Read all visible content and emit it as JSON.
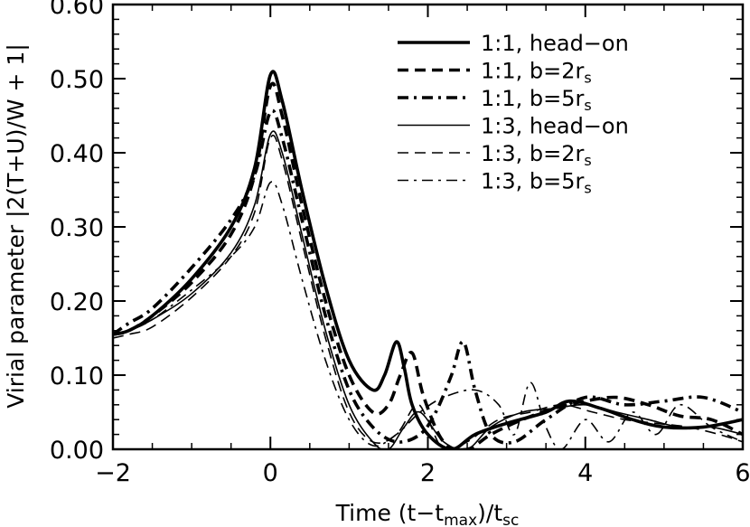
{
  "chart_data": {
    "type": "line",
    "title": "",
    "xlabel": "Time  (t−t",
    "xlabel_sub1": "max",
    "xlabel_mid": ")/t",
    "xlabel_sub2": "sc",
    "ylabel": "Virial parameter  |2(T+U)/W + 1|",
    "xlim": [
      -2,
      6
    ],
    "ylim": [
      0,
      0.6
    ],
    "xticks": [
      -2,
      0,
      2,
      4,
      6
    ],
    "xtick_labels": [
      "−2",
      "0",
      "2",
      "4",
      "6"
    ],
    "yticks": [
      0,
      0.1,
      0.2,
      0.3,
      0.4,
      0.5,
      0.6
    ],
    "ytick_labels": [
      "0.00",
      "0.10",
      "0.20",
      "0.30",
      "0.40",
      "0.50",
      "0.60"
    ],
    "grid": false,
    "legend_position": "top-right",
    "series": [
      {
        "name": "1:1,  head−on",
        "style": "thick-solid",
        "x": [
          -2,
          -1.8,
          -1.5,
          -1.0,
          -0.5,
          -0.2,
          0,
          0.15,
          0.4,
          0.7,
          1.0,
          1.3,
          1.45,
          1.6,
          1.7,
          1.8,
          2.0,
          2.3,
          2.6,
          3.0,
          3.5,
          3.8,
          4.2,
          4.6,
          5.0,
          5.5,
          6.0
        ],
        "y": [
          0.155,
          0.16,
          0.18,
          0.23,
          0.3,
          0.38,
          0.505,
          0.47,
          0.35,
          0.22,
          0.12,
          0.08,
          0.1,
          0.145,
          0.11,
          0.06,
          0.02,
          0.0,
          0.02,
          0.035,
          0.05,
          0.065,
          0.055,
          0.04,
          0.03,
          0.03,
          0.04
        ]
      },
      {
        "name": "1:1,  b=2r",
        "name_sub": "s",
        "style": "thick-dashed",
        "x": [
          -2,
          -1.8,
          -1.5,
          -1.0,
          -0.5,
          -0.2,
          0,
          0.15,
          0.4,
          0.7,
          1.0,
          1.3,
          1.5,
          1.65,
          1.8,
          1.95,
          2.2,
          2.5,
          2.8,
          3.2,
          3.6,
          4.0,
          4.4,
          4.8,
          5.2,
          5.6,
          6.0
        ],
        "y": [
          0.155,
          0.16,
          0.18,
          0.225,
          0.29,
          0.37,
          0.49,
          0.45,
          0.33,
          0.2,
          0.1,
          0.05,
          0.06,
          0.1,
          0.13,
          0.07,
          0.01,
          0.0,
          0.02,
          0.04,
          0.055,
          0.065,
          0.07,
          0.06,
          0.045,
          0.04,
          0.02
        ]
      },
      {
        "name": "1:1,  b=5r",
        "name_sub": "s",
        "style": "thick-dashdot",
        "x": [
          -2,
          -1.8,
          -1.5,
          -1.0,
          -0.5,
          -0.2,
          0,
          0.15,
          0.4,
          0.7,
          1.0,
          1.3,
          1.6,
          1.9,
          2.1,
          2.3,
          2.45,
          2.6,
          2.8,
          3.1,
          3.5,
          4.0,
          4.5,
          5.0,
          5.5,
          6.0
        ],
        "y": [
          0.155,
          0.17,
          0.19,
          0.245,
          0.31,
          0.37,
          0.455,
          0.42,
          0.31,
          0.18,
          0.08,
          0.03,
          0.01,
          0.02,
          0.05,
          0.1,
          0.145,
          0.08,
          0.02,
          0.01,
          0.04,
          0.07,
          0.06,
          0.065,
          0.07,
          0.05
        ]
      },
      {
        "name": "1:3,  head−on",
        "style": "thin-solid",
        "x": [
          -2,
          -1.8,
          -1.5,
          -1.0,
          -0.5,
          -0.2,
          0,
          0.15,
          0.4,
          0.7,
          1.0,
          1.3,
          1.5,
          1.7,
          1.9,
          2.2,
          2.5,
          2.8,
          3.2,
          3.6,
          4.0,
          4.4,
          4.8,
          5.2,
          5.6,
          6.0
        ],
        "y": [
          0.155,
          0.16,
          0.175,
          0.21,
          0.265,
          0.33,
          0.425,
          0.4,
          0.29,
          0.16,
          0.06,
          0.01,
          0.0,
          0.03,
          0.05,
          0.01,
          0.0,
          0.03,
          0.05,
          0.055,
          0.06,
          0.05,
          0.04,
          0.03,
          0.03,
          0.02
        ]
      },
      {
        "name": "1:3,  b=2r",
        "name_sub": "s",
        "style": "thin-dashed",
        "x": [
          -2,
          -1.8,
          -1.5,
          -1.0,
          -0.5,
          -0.2,
          0,
          0.15,
          0.4,
          0.7,
          1.0,
          1.3,
          1.6,
          1.85,
          2.0,
          2.2,
          2.5,
          2.9,
          3.3,
          3.7,
          4.1,
          4.5,
          4.9,
          5.3,
          5.7,
          6.0
        ],
        "y": [
          0.15,
          0.155,
          0.165,
          0.205,
          0.26,
          0.32,
          0.42,
          0.39,
          0.28,
          0.15,
          0.05,
          0.01,
          0.02,
          0.06,
          0.04,
          0.0,
          0.01,
          0.04,
          0.05,
          0.06,
          0.05,
          0.04,
          0.035,
          0.03,
          0.02,
          0.01
        ]
      },
      {
        "name": "1:3,  b=5r",
        "name_sub": "s",
        "style": "thin-dashdot",
        "x": [
          -2,
          -1.8,
          -1.5,
          -1.0,
          -0.5,
          -0.2,
          0,
          0.15,
          0.4,
          0.7,
          1.0,
          1.3,
          1.6,
          1.9,
          2.2,
          2.6,
          2.9,
          3.1,
          3.3,
          3.5,
          3.7,
          4.0,
          4.3,
          4.6,
          4.9,
          5.2,
          5.6,
          6.0
        ],
        "y": [
          0.155,
          0.16,
          0.175,
          0.215,
          0.26,
          0.3,
          0.36,
          0.33,
          0.23,
          0.12,
          0.04,
          0.005,
          0.02,
          0.05,
          0.07,
          0.08,
          0.06,
          0.02,
          0.09,
          0.03,
          0.0,
          0.04,
          0.01,
          0.05,
          0.02,
          0.06,
          0.03,
          0.01
        ]
      }
    ]
  }
}
